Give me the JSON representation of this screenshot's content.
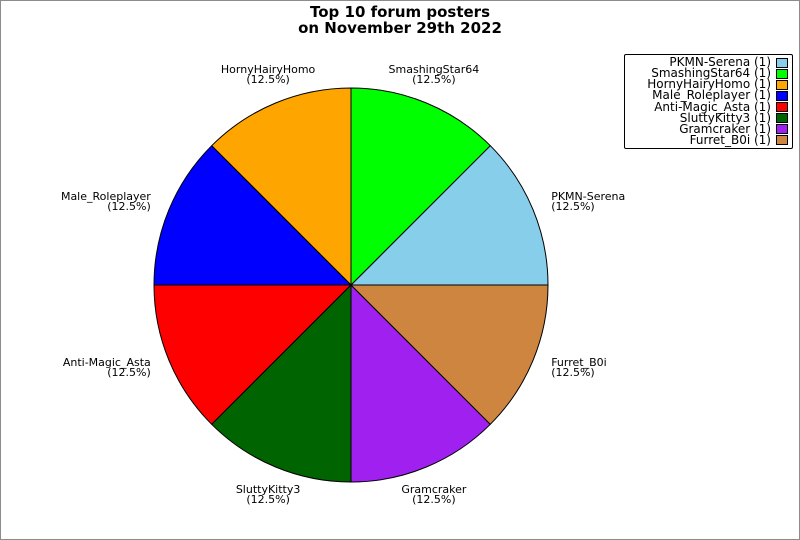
{
  "figure": {
    "title_line1": "Top 10 forum posters",
    "title_line2": "on November 29th 2022",
    "background_color": "#ffffff",
    "frame_border_color": "#8c8c8c"
  },
  "chart_data": {
    "type": "pie",
    "title": "Top 10 forum posters\non November 29th 2022",
    "start_angle_deg": 0,
    "direction": "counterclockwise",
    "slice_edge_color": "#000000",
    "slices": [
      {
        "label": "PKMN-Serena",
        "value": 1,
        "percent": 12.5,
        "pct_label": "(12.5%)",
        "color": "#87CEEB"
      },
      {
        "label": "SmashingStar64",
        "value": 1,
        "percent": 12.5,
        "pct_label": "(12.5%)",
        "color": "#00FF00"
      },
      {
        "label": "HornyHairyHomo",
        "value": 1,
        "percent": 12.5,
        "pct_label": "(12.5%)",
        "color": "#FFA500"
      },
      {
        "label": "Male_Roleplayer",
        "value": 1,
        "percent": 12.5,
        "pct_label": "(12.5%)",
        "color": "#0000FF"
      },
      {
        "label": "Anti-Magic_Asta",
        "value": 1,
        "percent": 12.5,
        "pct_label": "(12.5%)",
        "color": "#FF0000"
      },
      {
        "label": "SluttyKitty3",
        "value": 1,
        "percent": 12.5,
        "pct_label": "(12.5%)",
        "color": "#006400"
      },
      {
        "label": "Gramcraker",
        "value": 1,
        "percent": 12.5,
        "pct_label": "(12.5%)",
        "color": "#A020F0"
      },
      {
        "label": "Furret_B0i",
        "value": 1,
        "percent": 12.5,
        "pct_label": "(12.5%)",
        "color": "#CD853F"
      }
    ],
    "legend": {
      "position": "upper right",
      "entries": [
        "PKMN-Serena (1)",
        "SmashingStar64 (1)",
        "HornyHairyHomo (1)",
        "Male_Roleplayer (1)",
        "Anti-Magic_Asta (1)",
        "SluttyKitty3 (1)",
        "Gramcraker (1)",
        "Furret_B0i (1)"
      ]
    }
  }
}
